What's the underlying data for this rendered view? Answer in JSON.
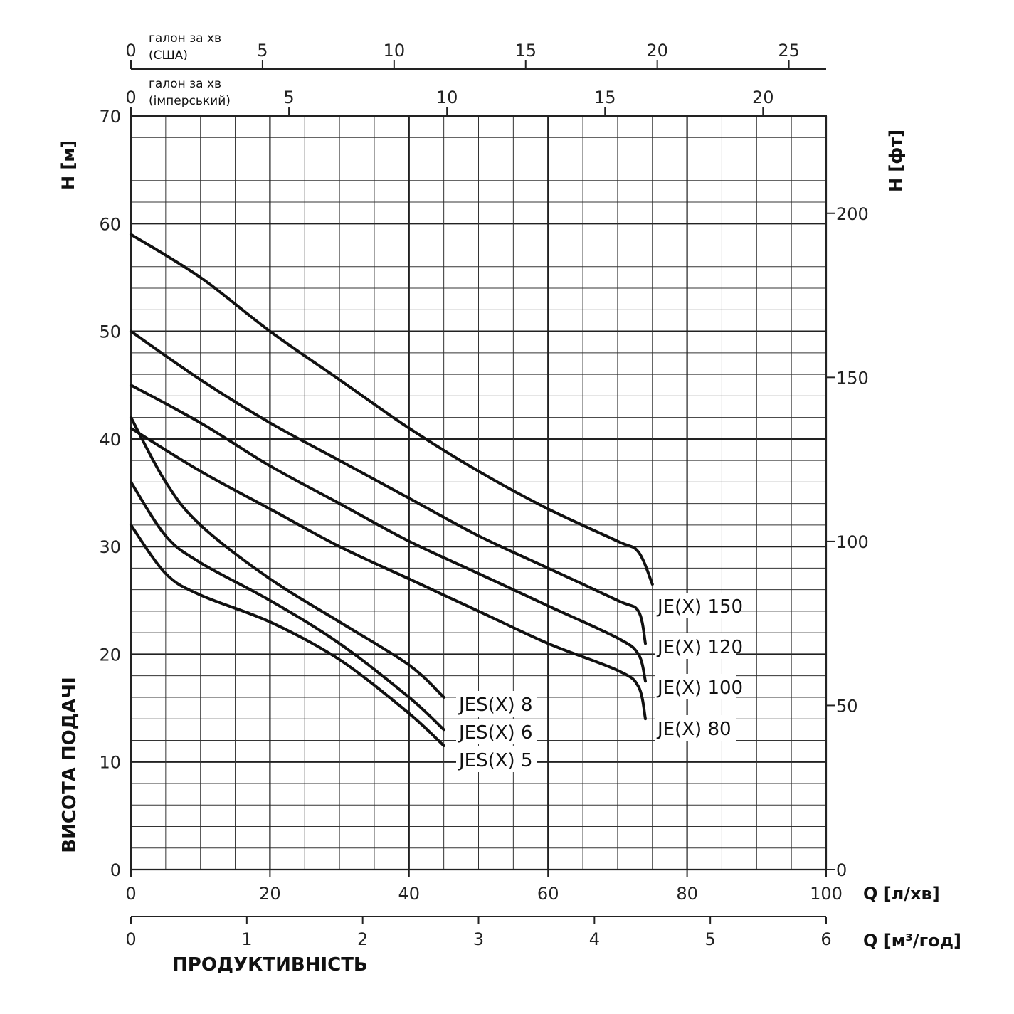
{
  "chart_data": {
    "type": "line",
    "ylabel": "H [м]",
    "ylabel2": "H [фт]",
    "ylabel_side": "ВИСОТА ПОДАЧІ",
    "xlabel": "Q [л/хв]",
    "xlabel2": "Q [м³/год]",
    "xlabel_bottom": "ПРОДУКТИВНІСТЬ",
    "xlim": [
      0,
      100
    ],
    "ylim": [
      0,
      70
    ],
    "grid": true,
    "axes": {
      "y_left": {
        "ticks": [
          0,
          10,
          20,
          30,
          40,
          50,
          60,
          70
        ]
      },
      "y_right": {
        "label": "H [фт]",
        "ticks": [
          0,
          50,
          100,
          150,
          200
        ]
      },
      "x_lpm": {
        "label": "Q [л/хв]",
        "ticks": [
          0,
          20,
          40,
          60,
          80,
          100
        ]
      },
      "x_m3h": {
        "label": "Q [м³/год]",
        "ticks": [
          0,
          1,
          2,
          3,
          4,
          5,
          6
        ]
      },
      "x_us_gpm": {
        "label_line1": "галон за хв",
        "label_line2": "(США)",
        "ticks": [
          0,
          5,
          10,
          15,
          20,
          25
        ]
      },
      "x_imp_gpm": {
        "label_line1": "галон за хв",
        "label_line2": "(імперський)",
        "ticks": [
          0,
          5,
          10,
          15,
          20
        ]
      }
    },
    "series": [
      {
        "name": "JE(X) 150",
        "x": [
          0,
          10,
          20,
          30,
          40,
          50,
          60,
          70,
          73,
          75
        ],
        "y": [
          59,
          55,
          50,
          45.5,
          41,
          37,
          33.5,
          30.5,
          29.5,
          26.5
        ]
      },
      {
        "name": "JE(X) 120",
        "x": [
          0,
          10,
          20,
          30,
          40,
          50,
          60,
          70,
          73,
          74
        ],
        "y": [
          50,
          45.5,
          41.5,
          38,
          34.5,
          31,
          28,
          25,
          24,
          21
        ]
      },
      {
        "name": "JE(X) 100",
        "x": [
          0,
          10,
          20,
          30,
          40,
          50,
          60,
          70,
          73,
          74
        ],
        "y": [
          45,
          41.5,
          37.5,
          34,
          30.5,
          27.5,
          24.5,
          21.5,
          20,
          17.5
        ]
      },
      {
        "name": "JE(X) 80",
        "x": [
          0,
          10,
          20,
          30,
          40,
          50,
          60,
          70,
          73,
          74
        ],
        "y": [
          41,
          37,
          33.5,
          30,
          27,
          24,
          21,
          18.5,
          17,
          14
        ]
      },
      {
        "name": "JES(X) 8",
        "x": [
          0,
          5,
          10,
          20,
          30,
          40,
          45
        ],
        "y": [
          42,
          36,
          32,
          27,
          23,
          19,
          16
        ]
      },
      {
        "name": "JES(X) 6",
        "x": [
          0,
          5,
          10,
          20,
          30,
          40,
          45
        ],
        "y": [
          36,
          31,
          28.5,
          25,
          21,
          16,
          13
        ]
      },
      {
        "name": "JES(X) 5",
        "x": [
          0,
          5,
          10,
          20,
          30,
          40,
          45
        ],
        "y": [
          32,
          27.5,
          25.5,
          23,
          19.5,
          14.5,
          11.5
        ]
      }
    ]
  }
}
